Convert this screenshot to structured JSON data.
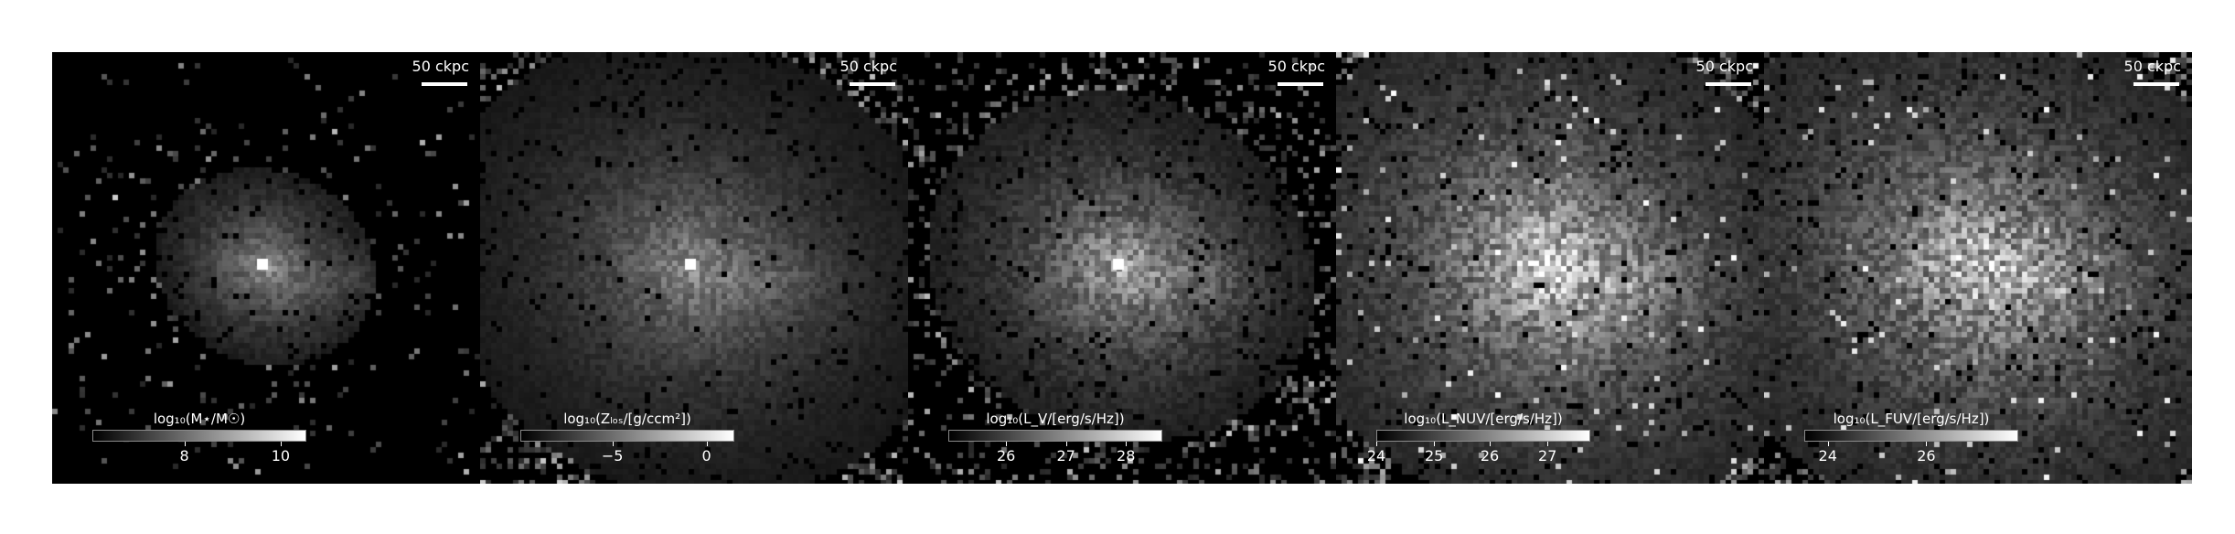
{
  "figure": {
    "scalebar_label": "50 ckpc",
    "panels": [
      {
        "id": "stellar-mass",
        "colorbar": {
          "label": "log₁₀(M⋆/M☉)",
          "ticks": [
            {
              "label": "8",
              "frac": 0.43
            },
            {
              "label": "10",
              "frac": 0.88
            }
          ]
        }
      },
      {
        "id": "metallicity",
        "colorbar": {
          "label": "log₁₀(Zₗₒₛ/[g/ccm²])",
          "ticks": [
            {
              "label": "−5",
              "frac": 0.43
            },
            {
              "label": "0",
              "frac": 0.87
            }
          ]
        }
      },
      {
        "id": "v-band",
        "colorbar": {
          "label": "log₁₀(L_V/[erg/s/Hz])",
          "ticks": [
            {
              "label": "26",
              "frac": 0.27
            },
            {
              "label": "27",
              "frac": 0.55
            },
            {
              "label": "28",
              "frac": 0.83
            }
          ]
        }
      },
      {
        "id": "nuv",
        "colorbar": {
          "label": "log₁₀(L_NUV/[erg/s/Hz])",
          "ticks": [
            {
              "label": "24",
              "frac": 0.0
            },
            {
              "label": "25",
              "frac": 0.27
            },
            {
              "label": "26",
              "frac": 0.53
            },
            {
              "label": "27",
              "frac": 0.8
            }
          ]
        }
      },
      {
        "id": "fuv",
        "colorbar": {
          "label": "log₁₀(L_FUV/[erg/s/Hz])",
          "ticks": [
            {
              "label": "24",
              "frac": 0.11
            },
            {
              "label": "26",
              "frac": 0.57
            }
          ]
        }
      }
    ]
  }
}
